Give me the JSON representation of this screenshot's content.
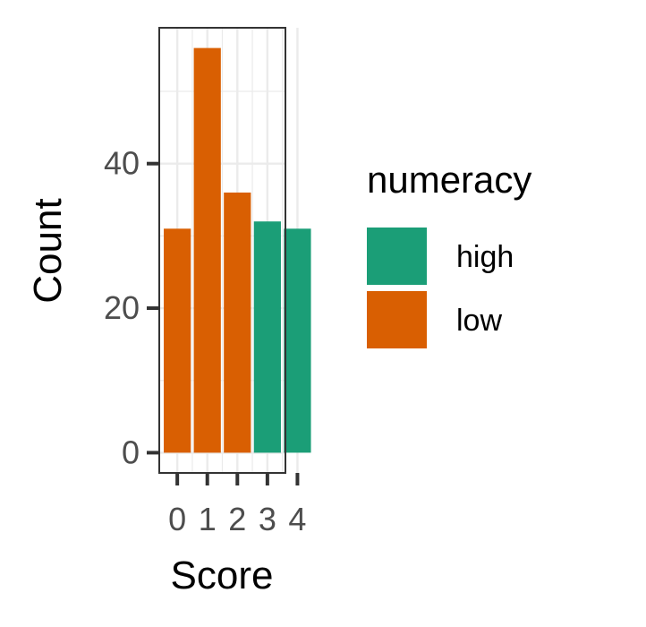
{
  "chart_data": {
    "type": "bar",
    "categories": [
      "0",
      "1",
      "2",
      "3",
      "4"
    ],
    "values": [
      31,
      56,
      36,
      32,
      31
    ],
    "groups": [
      "low",
      "low",
      "low",
      "high",
      "high"
    ],
    "xlabel": "Score",
    "ylabel": "Count",
    "ylim": [
      -2.8,
      58.8
    ],
    "yticks": [
      0,
      20,
      40
    ],
    "legend": {
      "title": "numeracy",
      "position": "right",
      "entries": [
        {
          "name": "high",
          "color": "#1b9e77"
        },
        {
          "name": "low",
          "color": "#d95f02"
        }
      ]
    },
    "grid": true,
    "colors": {
      "high": "#1b9e77",
      "low": "#d95f02",
      "grid": "#ebebeb",
      "panel_border": "#333333",
      "tick": "#333333"
    }
  }
}
